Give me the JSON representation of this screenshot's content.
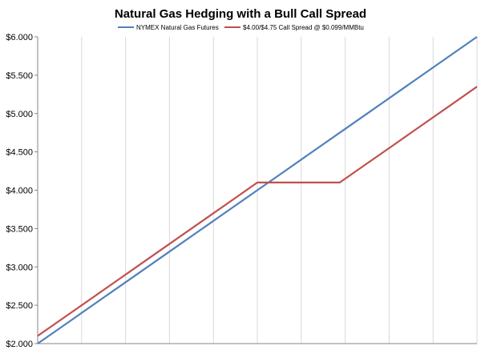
{
  "chart_data": {
    "type": "line",
    "title": "Natural Gas Hedging with a Bull Call Spread",
    "xlabel": "",
    "ylabel": "",
    "ylim": [
      2.0,
      6.0
    ],
    "y_ticks": [
      "$2.000",
      "$2.500",
      "$3.000",
      "$3.500",
      "$4.000",
      "$4.500",
      "$5.000",
      "$5.500",
      "$6.000"
    ],
    "y_tick_values": [
      2.0,
      2.5,
      3.0,
      3.5,
      4.0,
      4.5,
      5.0,
      5.5,
      6.0
    ],
    "grid": "vertical",
    "legend_position": "top",
    "x": [
      2.0,
      2.25,
      2.5,
      2.75,
      3.0,
      3.25,
      3.5,
      3.75,
      4.0,
      4.25,
      4.5,
      4.75,
      5.0,
      5.25,
      5.5,
      5.75,
      6.0
    ],
    "series": [
      {
        "name": "NYMEX Natural Gas Futures",
        "color": "#4f81bd",
        "values": [
          2.0,
          2.25,
          2.5,
          2.75,
          3.0,
          3.25,
          3.5,
          3.75,
          4.0,
          4.25,
          4.5,
          4.75,
          5.0,
          5.25,
          5.5,
          5.75,
          6.0
        ]
      },
      {
        "name": "$4.00/$4.75 Call Spread @ $0.099/MMBtu",
        "color": "#c0504d",
        "values": [
          2.1,
          2.35,
          2.6,
          2.85,
          3.1,
          3.35,
          3.6,
          3.85,
          4.1,
          4.1,
          4.1,
          4.1,
          4.35,
          4.6,
          4.85,
          5.1,
          5.35
        ]
      }
    ]
  }
}
